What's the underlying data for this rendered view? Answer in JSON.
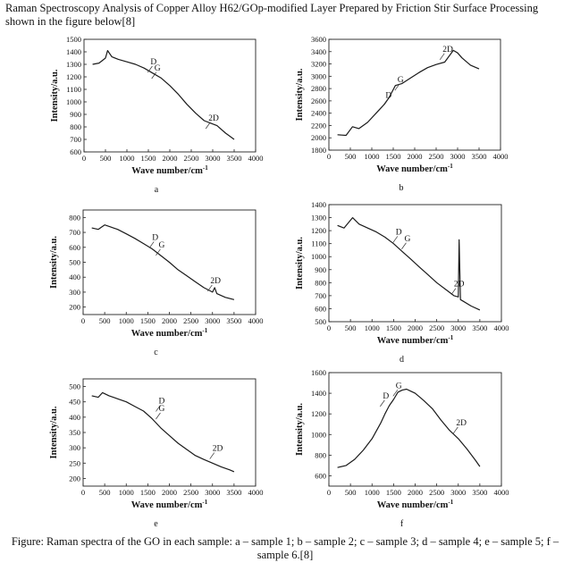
{
  "header": "Raman Spectroscopy Analysis of Copper Alloy H62/GOp-modified Layer Prepared by Friction Stir Surface Processing shown in the figure below[8]",
  "caption": "Figure: Raman spectra of the GO in each sample: a – sample 1; b – sample 2; c – sample 3; d – sample 4; e – sample 5; f – sample 6.[8]",
  "chart_data": [
    {
      "type": "line",
      "panel_label": "a",
      "xlabel": "Wave number/cm",
      "xlabel_sup": "-1",
      "ylabel": "Intensity/a.u.",
      "xlim": [
        0,
        4000
      ],
      "ylim": [
        600,
        1500
      ],
      "xticks": [
        0,
        500,
        1000,
        1500,
        2000,
        2500,
        3000,
        3500,
        4000
      ],
      "yticks": [
        600,
        700,
        800,
        900,
        1000,
        1100,
        1200,
        1300,
        1400,
        1500
      ],
      "series": [
        {
          "x": [
            200,
            350,
            500,
            550,
            650,
            800,
            1000,
            1200,
            1400,
            1600,
            1800,
            2000,
            2200,
            2400,
            2600,
            2800,
            2950,
            3100,
            3300,
            3500
          ],
          "y": [
            1300,
            1310,
            1350,
            1410,
            1360,
            1340,
            1320,
            1300,
            1270,
            1230,
            1190,
            1130,
            1060,
            980,
            910,
            850,
            830,
            810,
            750,
            700
          ]
        }
      ],
      "annotations": [
        {
          "text": "D",
          "x": 1550,
          "y": 1300
        },
        {
          "text": "G",
          "x": 1640,
          "y": 1250
        },
        {
          "text": "2D",
          "x": 2900,
          "y": 850
        }
      ]
    },
    {
      "type": "line",
      "panel_label": "b",
      "xlabel": "Wave number/cm",
      "xlabel_sup": "-1",
      "ylabel": "Intensity/a.u.",
      "xlim": [
        0,
        4000
      ],
      "ylim": [
        1800,
        3600
      ],
      "xticks": [
        0,
        500,
        1000,
        1500,
        2000,
        2500,
        3000,
        3500,
        4000
      ],
      "yticks": [
        1800,
        2000,
        2200,
        2400,
        2600,
        2800,
        3000,
        3200,
        3400,
        3600
      ],
      "series": [
        {
          "x": [
            200,
            400,
            550,
            700,
            900,
            1100,
            1300,
            1400,
            1550,
            1700,
            1900,
            2100,
            2300,
            2500,
            2700,
            2900,
            3000,
            3100,
            3300,
            3500
          ],
          "y": [
            2050,
            2040,
            2180,
            2150,
            2250,
            2400,
            2550,
            2650,
            2850,
            2880,
            2970,
            3060,
            3140,
            3190,
            3230,
            3420,
            3380,
            3300,
            3180,
            3120
          ]
        }
      ],
      "annotations": [
        {
          "text": "D",
          "x": 1320,
          "y": 2650
        },
        {
          "text": "G",
          "x": 1600,
          "y": 2900
        },
        {
          "text": "2D",
          "x": 2650,
          "y": 3400
        }
      ]
    },
    {
      "type": "line",
      "panel_label": "c",
      "xlabel": "Wave number/cm",
      "xlabel_sup": "-1",
      "ylabel": "Intensity/a.u.",
      "xlim": [
        0,
        4000
      ],
      "ylim": [
        150,
        850
      ],
      "xticks": [
        0,
        500,
        1000,
        1500,
        2000,
        2500,
        3000,
        3500,
        4000
      ],
      "yticks": [
        200,
        300,
        400,
        500,
        600,
        700,
        800
      ],
      "series": [
        {
          "x": [
            200,
            350,
            500,
            650,
            800,
            1000,
            1200,
            1400,
            1600,
            1800,
            2000,
            2200,
            2400,
            2600,
            2800,
            3000,
            3050,
            3100,
            3300,
            3500
          ],
          "y": [
            730,
            720,
            750,
            735,
            720,
            690,
            660,
            625,
            590,
            545,
            500,
            450,
            410,
            370,
            330,
            300,
            330,
            290,
            265,
            250
          ]
        }
      ],
      "annotations": [
        {
          "text": "D",
          "x": 1600,
          "y": 650
        },
        {
          "text": "G",
          "x": 1750,
          "y": 600
        },
        {
          "text": "2D",
          "x": 2950,
          "y": 360
        }
      ]
    },
    {
      "type": "line",
      "panel_label": "d",
      "xlabel": "Wave number/cm",
      "xlabel_sup": "-1",
      "ylabel": "Intensity/a.u.",
      "xlim": [
        0,
        4000
      ],
      "ylim": [
        500,
        1400
      ],
      "xticks": [
        0,
        500,
        1000,
        1500,
        2000,
        2500,
        3000,
        3500,
        4000
      ],
      "yticks": [
        500,
        600,
        700,
        800,
        900,
        1000,
        1100,
        1200,
        1300,
        1400
      ],
      "series": [
        {
          "x": [
            200,
            350,
            500,
            550,
            700,
            900,
            1100,
            1300,
            1500,
            1700,
            1900,
            2100,
            2300,
            2500,
            2700,
            2900,
            3000,
            3020,
            3050,
            3100,
            3300,
            3500
          ],
          "y": [
            1240,
            1220,
            1280,
            1300,
            1250,
            1220,
            1190,
            1150,
            1100,
            1040,
            980,
            920,
            860,
            800,
            750,
            700,
            690,
            1130,
            670,
            660,
            620,
            590
          ]
        }
      ],
      "annotations": [
        {
          "text": "D",
          "x": 1550,
          "y": 1170
        },
        {
          "text": "G",
          "x": 1750,
          "y": 1120
        },
        {
          "text": "2D",
          "x": 2900,
          "y": 770
        }
      ]
    },
    {
      "type": "line",
      "panel_label": "e",
      "xlabel": "Wave number/cm",
      "xlabel_sup": "-1",
      "ylabel": "Intensity/a.u.",
      "xlim": [
        0,
        4000
      ],
      "ylim": [
        175,
        525
      ],
      "xticks": [
        0,
        500,
        1000,
        1500,
        2000,
        2500,
        3000,
        3500,
        4000
      ],
      "yticks": [
        200,
        250,
        300,
        350,
        400,
        450,
        500
      ],
      "series": [
        {
          "x": [
            200,
            350,
            450,
            600,
            800,
            1000,
            1200,
            1400,
            1600,
            1800,
            2000,
            2200,
            2400,
            2600,
            2800,
            3000,
            3200,
            3400,
            3500
          ],
          "y": [
            470,
            465,
            480,
            470,
            460,
            450,
            435,
            420,
            395,
            365,
            340,
            315,
            295,
            275,
            262,
            250,
            238,
            228,
            222
          ]
        }
      ],
      "annotations": [
        {
          "text": "D",
          "x": 1750,
          "y": 445
        },
        {
          "text": "G",
          "x": 1750,
          "y": 420
        },
        {
          "text": "2D",
          "x": 3000,
          "y": 290
        }
      ]
    },
    {
      "type": "line",
      "panel_label": "f",
      "xlabel": "Wave number/cm",
      "xlabel_sup": "-1",
      "ylabel": "Intensity/a.u.",
      "xlim": [
        0,
        4000
      ],
      "ylim": [
        500,
        1600
      ],
      "xticks": [
        0,
        500,
        1000,
        1500,
        2000,
        2500,
        3000,
        3500,
        4000
      ],
      "yticks": [
        600,
        800,
        1000,
        1200,
        1400,
        1600
      ],
      "series": [
        {
          "x": [
            200,
            400,
            600,
            800,
            1000,
            1200,
            1300,
            1400,
            1500,
            1600,
            1700,
            1800,
            1900,
            2000,
            2200,
            2400,
            2600,
            2800,
            3000,
            3200,
            3400,
            3500
          ],
          "y": [
            680,
            700,
            760,
            850,
            960,
            1110,
            1200,
            1280,
            1340,
            1410,
            1430,
            1440,
            1420,
            1400,
            1330,
            1250,
            1140,
            1040,
            960,
            860,
            750,
            690
          ]
        }
      ],
      "annotations": [
        {
          "text": "D",
          "x": 1250,
          "y": 1350
        },
        {
          "text": "G",
          "x": 1550,
          "y": 1450
        },
        {
          "text": "2D",
          "x": 2950,
          "y": 1090
        }
      ]
    }
  ]
}
